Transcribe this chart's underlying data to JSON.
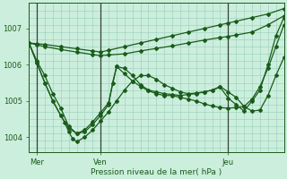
{
  "background_color": "#cceedd",
  "grid_color": "#99ccbb",
  "line_color": "#1a5c1a",
  "xlabel": "Pression niveau de la mer( hPa )",
  "ylim": [
    1003.6,
    1007.7
  ],
  "yticks": [
    1004,
    1005,
    1006,
    1007
  ],
  "xlim": [
    0,
    64
  ],
  "x_tick_positions": [
    2,
    18,
    50
  ],
  "x_tick_labels": [
    "Mer",
    "Ven",
    "Jeu"
  ],
  "x_vlines": [
    2,
    18,
    50
  ],
  "series": [
    {
      "points": [
        [
          0,
          1006.6
        ],
        [
          2,
          1006.55
        ],
        [
          4,
          1006.5
        ],
        [
          8,
          1006.42
        ],
        [
          12,
          1006.35
        ],
        [
          16,
          1006.28
        ],
        [
          18,
          1006.25
        ],
        [
          20,
          1006.27
        ],
        [
          24,
          1006.3
        ],
        [
          28,
          1006.38
        ],
        [
          32,
          1006.45
        ],
        [
          36,
          1006.52
        ],
        [
          40,
          1006.6
        ],
        [
          44,
          1006.68
        ],
        [
          48,
          1006.75
        ],
        [
          50,
          1006.78
        ],
        [
          52,
          1006.82
        ],
        [
          56,
          1006.9
        ],
        [
          60,
          1007.1
        ],
        [
          64,
          1007.35
        ]
      ]
    },
    {
      "points": [
        [
          0,
          1006.6
        ],
        [
          2,
          1006.58
        ],
        [
          4,
          1006.56
        ],
        [
          8,
          1006.5
        ],
        [
          12,
          1006.44
        ],
        [
          16,
          1006.38
        ],
        [
          18,
          1006.35
        ],
        [
          20,
          1006.4
        ],
        [
          24,
          1006.5
        ],
        [
          28,
          1006.6
        ],
        [
          32,
          1006.7
        ],
        [
          36,
          1006.8
        ],
        [
          40,
          1006.9
        ],
        [
          44,
          1007.0
        ],
        [
          48,
          1007.1
        ],
        [
          50,
          1007.15
        ],
        [
          52,
          1007.2
        ],
        [
          56,
          1007.3
        ],
        [
          60,
          1007.4
        ],
        [
          64,
          1007.55
        ]
      ]
    },
    {
      "points": [
        [
          0,
          1006.6
        ],
        [
          2,
          1006.1
        ],
        [
          4,
          1005.7
        ],
        [
          6,
          1005.2
        ],
        [
          8,
          1004.8
        ],
        [
          10,
          1004.3
        ],
        [
          12,
          1004.1
        ],
        [
          14,
          1004.15
        ],
        [
          16,
          1004.35
        ],
        [
          18,
          1004.6
        ],
        [
          20,
          1004.9
        ],
        [
          21,
          1005.5
        ],
        [
          22,
          1005.95
        ],
        [
          24,
          1005.9
        ],
        [
          26,
          1005.7
        ],
        [
          28,
          1005.45
        ],
        [
          30,
          1005.3
        ],
        [
          32,
          1005.25
        ],
        [
          34,
          1005.2
        ],
        [
          36,
          1005.18
        ],
        [
          38,
          1005.15
        ],
        [
          40,
          1005.18
        ],
        [
          42,
          1005.2
        ],
        [
          44,
          1005.25
        ],
        [
          46,
          1005.3
        ],
        [
          48,
          1005.38
        ],
        [
          50,
          1005.08
        ],
        [
          52,
          1004.9
        ],
        [
          54,
          1004.72
        ],
        [
          56,
          1005.0
        ],
        [
          58,
          1005.3
        ],
        [
          60,
          1006.0
        ],
        [
          62,
          1006.8
        ],
        [
          64,
          1007.3
        ]
      ]
    },
    {
      "points": [
        [
          0,
          1006.6
        ],
        [
          2,
          1006.05
        ],
        [
          4,
          1005.5
        ],
        [
          6,
          1005.0
        ],
        [
          8,
          1004.6
        ],
        [
          9,
          1004.4
        ],
        [
          10,
          1004.15
        ],
        [
          11,
          1003.95
        ],
        [
          12,
          1003.88
        ],
        [
          14,
          1004.0
        ],
        [
          16,
          1004.2
        ],
        [
          18,
          1004.45
        ],
        [
          20,
          1004.7
        ],
        [
          22,
          1005.0
        ],
        [
          24,
          1005.3
        ],
        [
          26,
          1005.55
        ],
        [
          28,
          1005.7
        ],
        [
          30,
          1005.7
        ],
        [
          32,
          1005.6
        ],
        [
          34,
          1005.45
        ],
        [
          36,
          1005.35
        ],
        [
          38,
          1005.25
        ],
        [
          40,
          1005.2
        ],
        [
          42,
          1005.22
        ],
        [
          44,
          1005.25
        ],
        [
          46,
          1005.3
        ],
        [
          48,
          1005.4
        ],
        [
          50,
          1005.25
        ],
        [
          52,
          1005.1
        ],
        [
          54,
          1004.85
        ],
        [
          56,
          1004.72
        ],
        [
          58,
          1004.75
        ],
        [
          60,
          1005.15
        ],
        [
          62,
          1005.7
        ],
        [
          64,
          1006.2
        ]
      ]
    },
    {
      "points": [
        [
          0,
          1006.6
        ],
        [
          2,
          1006.05
        ],
        [
          4,
          1005.5
        ],
        [
          6,
          1005.0
        ],
        [
          8,
          1004.6
        ],
        [
          10,
          1004.25
        ],
        [
          12,
          1004.1
        ],
        [
          14,
          1004.2
        ],
        [
          16,
          1004.42
        ],
        [
          18,
          1004.68
        ],
        [
          20,
          1004.95
        ],
        [
          22,
          1005.95
        ],
        [
          24,
          1005.75
        ],
        [
          26,
          1005.55
        ],
        [
          28,
          1005.4
        ],
        [
          30,
          1005.28
        ],
        [
          32,
          1005.2
        ],
        [
          34,
          1005.15
        ],
        [
          36,
          1005.15
        ],
        [
          38,
          1005.1
        ],
        [
          40,
          1005.05
        ],
        [
          42,
          1005.0
        ],
        [
          44,
          1004.92
        ],
        [
          46,
          1004.86
        ],
        [
          48,
          1004.82
        ],
        [
          50,
          1004.8
        ],
        [
          52,
          1004.82
        ],
        [
          54,
          1004.85
        ],
        [
          56,
          1005.05
        ],
        [
          58,
          1005.4
        ],
        [
          60,
          1005.9
        ],
        [
          62,
          1006.5
        ],
        [
          64,
          1007.1
        ]
      ]
    }
  ]
}
